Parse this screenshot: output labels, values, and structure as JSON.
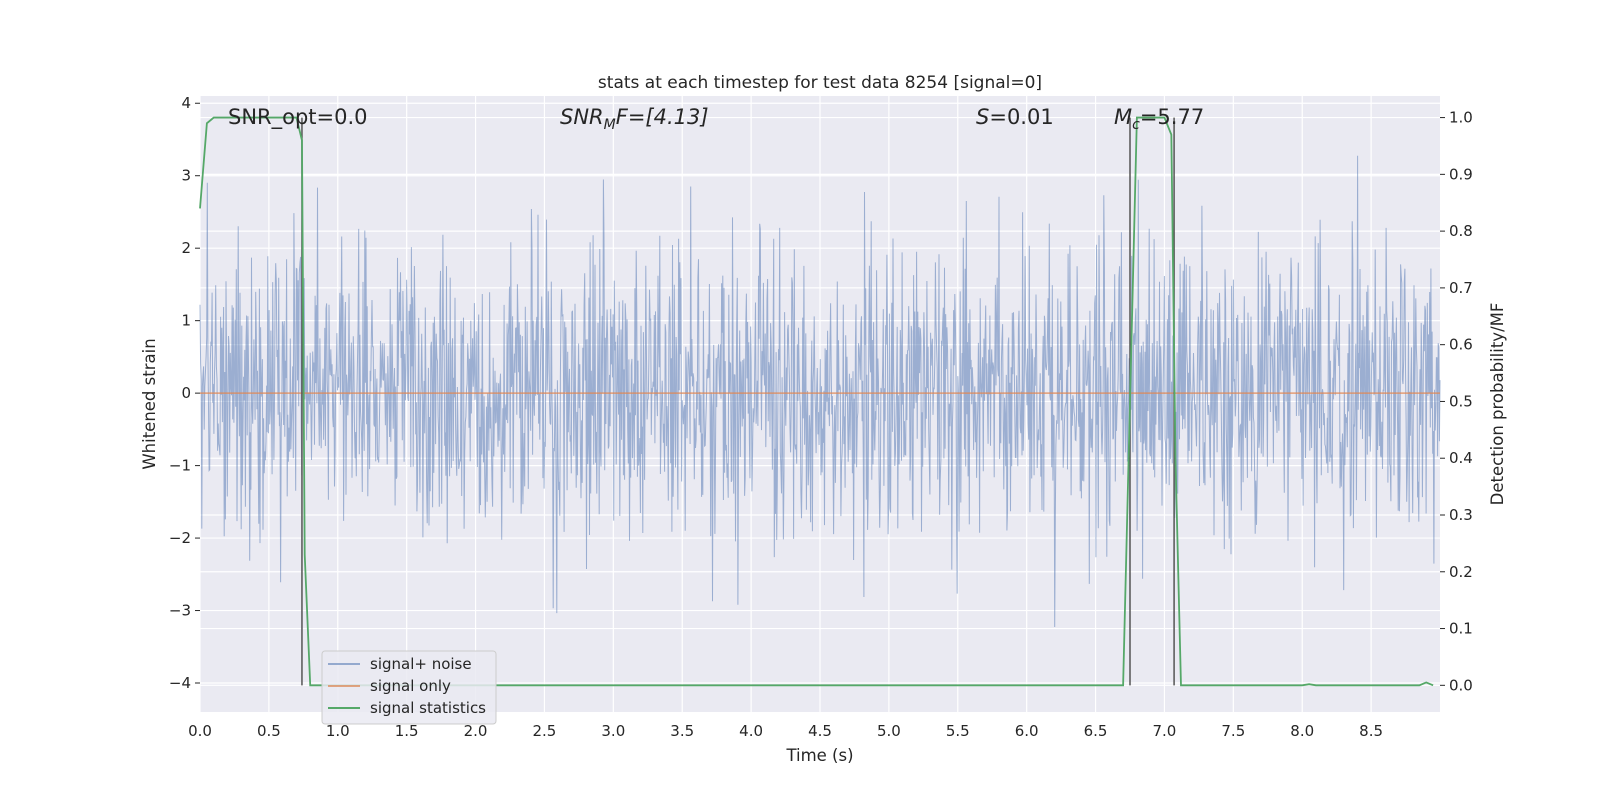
{
  "chart_data": {
    "type": "line",
    "title": "stats at each timestep for test data 8254 [signal=0]",
    "xlabel": "Time (s)",
    "ylabel": "Whitened strain",
    "y2label": "Detection probability/MF",
    "xlim": [
      0.0,
      9.0
    ],
    "ylim": [
      -4.4,
      4.1
    ],
    "y2lim": [
      -0.047,
      1.038
    ],
    "xticks": [
      "0.0",
      "0.5",
      "1.0",
      "1.5",
      "2.0",
      "2.5",
      "3.0",
      "3.5",
      "4.0",
      "4.5",
      "5.0",
      "5.5",
      "6.0",
      "6.5",
      "7.0",
      "7.5",
      "8.0",
      "8.5"
    ],
    "yticks": [
      "4",
      "3",
      "2",
      "1",
      "0",
      "−1",
      "−2",
      "−3",
      "−4"
    ],
    "y2ticks": [
      "1.0",
      "0.9",
      "0.8",
      "0.7",
      "0.6",
      "0.5",
      "0.4",
      "0.3",
      "0.2",
      "0.1",
      "0.0"
    ],
    "grid": true,
    "legend_position": "lower-left",
    "annotations": {
      "snr_opt": "SNR_opt=0.0",
      "snr_mf_main": "SNR",
      "snr_mf_sub": "M",
      "snr_mf_rest": "F=[4.13]",
      "s_main": "S",
      "s_rest": "=0.01",
      "mc_main": "M",
      "mc_sub": "c",
      "mc_rest": "=5.77"
    },
    "series": [
      {
        "name": "signal+ noise",
        "color": "#4c72b0",
        "description_values": "whitened noise, approx. range -3.3 to 3.7",
        "sample_seed": 8254,
        "n_samples": 2048
      },
      {
        "name": "signal only",
        "color": "#dd8452",
        "x": [
          0.0,
          9.0
        ],
        "y": [
          0.0,
          0.0
        ]
      },
      {
        "name": "signal statistics",
        "color": "#55a868",
        "axis": "right",
        "x": [
          0.0,
          0.05,
          0.1,
          0.2,
          0.3,
          0.4,
          0.5,
          0.6,
          0.65,
          0.7,
          0.74,
          0.76,
          0.8,
          1.0,
          2.0,
          3.0,
          4.0,
          5.0,
          6.0,
          6.5,
          6.7,
          6.75,
          6.8,
          6.9,
          7.0,
          7.05,
          7.08,
          7.12,
          8.0,
          8.05,
          8.1,
          8.5,
          8.85,
          8.9,
          8.95
        ],
        "y": [
          0.84,
          0.99,
          1.0,
          1.0,
          1.0,
          1.0,
          1.0,
          1.0,
          1.0,
          1.0,
          0.96,
          0.23,
          0.0,
          0.0,
          0.0,
          0.0,
          0.0,
          0.0,
          0.0,
          0.0,
          0.0,
          0.5,
          1.0,
          1.0,
          1.0,
          0.97,
          0.4,
          0.0,
          0.0,
          0.002,
          0.0,
          0.0,
          0.0,
          0.005,
          0.0
        ]
      }
    ],
    "markers": {
      "color": "#555555",
      "x": [
        0.74,
        6.75,
        7.07
      ]
    }
  }
}
